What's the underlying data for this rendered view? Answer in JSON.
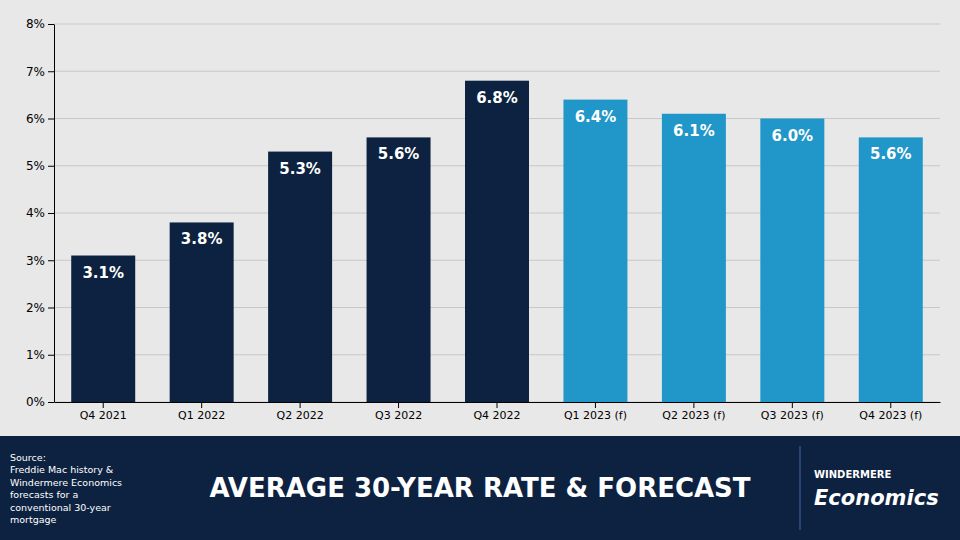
{
  "chart_data": {
    "type": "bar",
    "title": "AVERAGE 30-YEAR RATE & FORECAST",
    "categories": [
      "Q4 2021",
      "Q1 2022",
      "Q2 2022",
      "Q3 2022",
      "Q4 2022",
      "Q1 2023 (f)",
      "Q2 2023 (f)",
      "Q3 2023 (f)",
      "Q4 2023 (f)"
    ],
    "values": [
      3.1,
      3.8,
      5.3,
      5.6,
      6.8,
      6.4,
      6.1,
      6.0,
      5.6
    ],
    "value_labels": [
      "3.1%",
      "3.8%",
      "5.3%",
      "5.6%",
      "6.8%",
      "6.4%",
      "6.1%",
      "6.0%",
      "5.6%"
    ],
    "colors": [
      "#0d2240",
      "#0d2240",
      "#0d2240",
      "#0d2240",
      "#0d2240",
      "#2196c8",
      "#2196c8",
      "#2196c8",
      "#2196c8"
    ],
    "ylim": [
      0,
      8
    ],
    "yticks": [
      {
        "value": 0,
        "label": "0%"
      },
      {
        "value": 1,
        "label": "1%"
      },
      {
        "value": 2,
        "label": "2%"
      },
      {
        "value": 3,
        "label": "3%"
      },
      {
        "value": 4,
        "label": "4%"
      },
      {
        "value": 5,
        "label": "5%"
      },
      {
        "value": 6,
        "label": "6%"
      },
      {
        "value": 7,
        "label": "7%"
      },
      {
        "value": 8,
        "label": "8%"
      }
    ],
    "grid": true,
    "data_labels": true,
    "annotations": [
      "Source:\nFreddie Mac history &\nWindermere Economics\nforecasts for a\nconventional 30-year\nmortgage",
      "WINDERMERE",
      "Economics"
    ]
  }
}
